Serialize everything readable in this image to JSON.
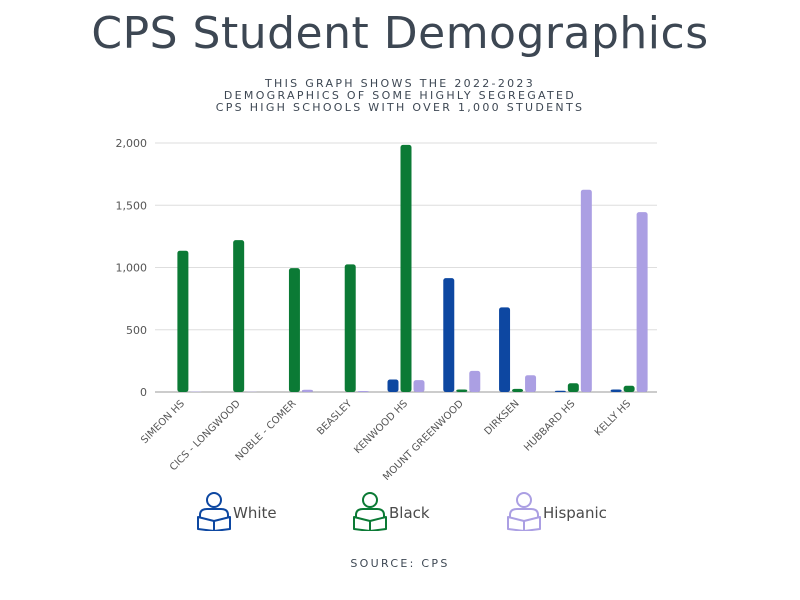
{
  "title": "CPS Student Demographics",
  "subtitle_lines": [
    "THIS GRAPH SHOWS THE 2022-2023",
    "DEMOGRAPHICS OF SOME HIGHLY SEGREGATED",
    "CPS HIGH SCHOOLS WITH OVER 1,000 STUDENTS"
  ],
  "source": "SOURCE: CPS",
  "legend": [
    {
      "label": "White",
      "icon": "reader-icon",
      "color": "#0d47a1"
    },
    {
      "label": "Black",
      "icon": "reader-icon",
      "color": "#0b7a35"
    },
    {
      "label": "Hispanic",
      "icon": "reader-icon",
      "color": "#ab9fe3"
    }
  ],
  "chart_data": {
    "type": "bar",
    "title": "CPS Student Demographics",
    "categories": [
      "SIMEON HS",
      "CICS - LONGWOOD",
      "NOBLE - COMER",
      "BEASLEY",
      "KENWOOD HS",
      "MOUNT GREENWOOD",
      "DIRKSEN",
      "HUBBARD HS",
      "KELLY HS"
    ],
    "series": [
      {
        "name": "White",
        "color": "#0d47a1",
        "values": [
          0,
          0,
          0,
          0,
          100,
          915,
          680,
          10,
          20
        ]
      },
      {
        "name": "Black",
        "color": "#0b7a35",
        "values": [
          1135,
          1220,
          995,
          1025,
          1985,
          20,
          25,
          70,
          50
        ]
      },
      {
        "name": "Hispanic",
        "color": "#ab9fe3",
        "values": [
          3,
          2,
          18,
          8,
          95,
          170,
          135,
          1625,
          1445
        ]
      }
    ],
    "ylim": [
      0,
      2000
    ],
    "yticks": [
      0,
      500,
      1000,
      1500,
      2000
    ],
    "ytick_labels": [
      "0",
      "500",
      "1,000",
      "1,500",
      "2,000"
    ],
    "grid": true,
    "legend_position": "bottom"
  }
}
